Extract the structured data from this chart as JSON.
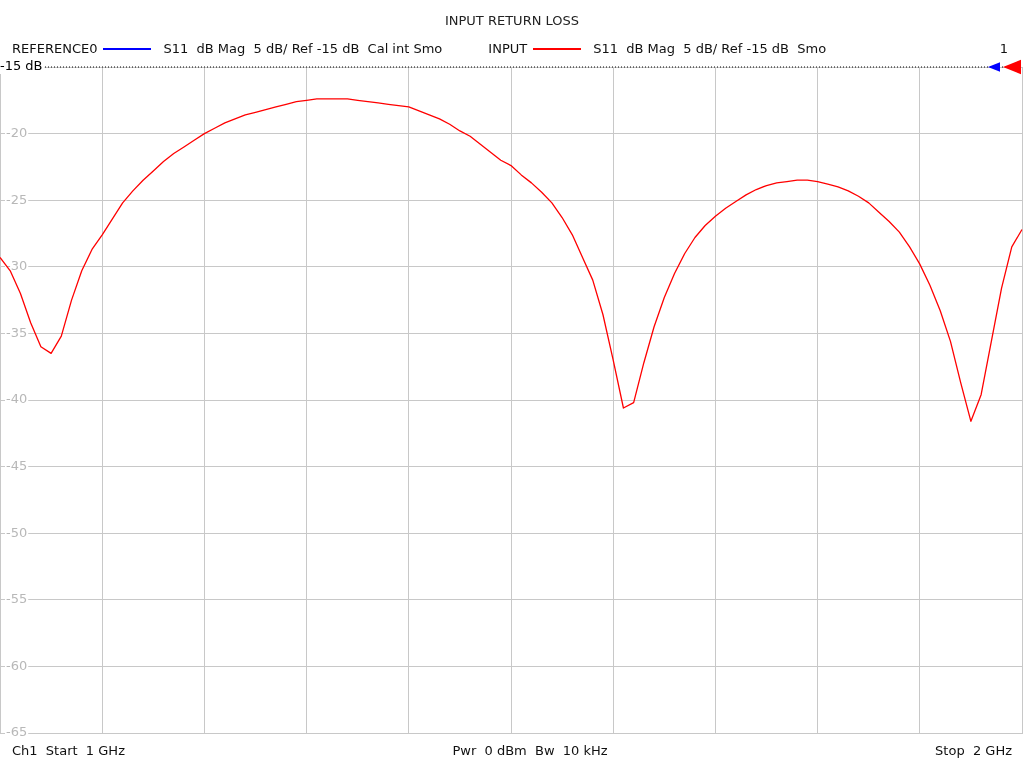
{
  "chart_data": {
    "type": "line",
    "title": "INPUT RETURN LOSS",
    "categories": [
      null,
      null,
      null,
      null,
      null,
      null,
      null,
      null,
      null,
      null,
      null,
      null,
      null,
      null,
      null,
      null,
      null,
      null,
      null,
      null,
      null,
      null,
      null,
      null,
      null,
      null,
      null,
      null,
      null,
      null,
      null,
      null,
      null,
      null,
      null,
      null,
      null,
      null,
      null,
      null,
      null,
      null,
      null,
      null,
      null,
      null,
      null,
      null,
      null,
      null,
      null,
      null,
      null,
      null,
      null,
      null,
      null,
      null,
      null,
      null,
      null,
      null,
      null,
      null,
      null,
      null,
      null,
      null,
      null,
      null,
      null,
      null,
      null,
      null,
      null,
      null,
      null,
      null,
      null,
      null,
      null,
      null,
      null,
      null,
      null,
      null,
      null,
      null,
      null,
      null,
      null,
      null,
      null,
      null,
      null,
      null,
      null,
      null,
      null,
      null,
      null
    ],
    "series": [
      {
        "name": "INPUT",
        "color": "#ff0000",
        "values": [
          -29.3,
          -30.3,
          -32.0,
          -34.2,
          -36.0,
          -36.5,
          -35.2,
          -32.5,
          -30.3,
          -28.7,
          -27.6,
          -26.4,
          -25.2,
          -24.3,
          -23.5,
          -22.8,
          -22.1,
          -21.5,
          -21.0,
          -20.5,
          -20.0,
          -19.6,
          -19.2,
          -18.9,
          -18.6,
          -18.4,
          -18.2,
          -18.0,
          -17.8,
          -17.6,
          -17.5,
          -17.4,
          -17.4,
          -17.4,
          -17.4,
          -17.5,
          -17.6,
          -17.7,
          -17.8,
          -17.9,
          -18.0,
          -18.3,
          -18.6,
          -18.9,
          -19.3,
          -19.8,
          -20.2,
          -20.8,
          -21.4,
          -22.0,
          -22.4,
          -23.1,
          -23.7,
          -24.4,
          -25.2,
          -26.3,
          -27.6,
          -29.3,
          -31.0,
          -33.6,
          -37.0,
          -40.6,
          -40.2,
          -37.2,
          -34.5,
          -32.3,
          -30.5,
          -29.0,
          -27.8,
          -26.9,
          -26.2,
          -25.6,
          -25.1,
          -24.6,
          -24.2,
          -23.9,
          -23.7,
          -23.6,
          -23.5,
          -23.5,
          -23.6,
          -23.8,
          -24.0,
          -24.3,
          -24.7,
          -25.2,
          -25.9,
          -26.6,
          -27.4,
          -28.5,
          -29.8,
          -31.4,
          -33.3,
          -35.6,
          -38.7,
          -41.6,
          -39.6,
          -35.6,
          -31.6,
          -28.5,
          -27.2
        ]
      }
    ],
    "ylim": [
      -65,
      -15
    ],
    "yticks": [
      {
        "value": -15,
        "label": null
      },
      -20,
      -25,
      -30,
      -35,
      -40,
      -45,
      -50,
      -55,
      -60,
      -65
    ],
    "tick_labels": "y",
    "grid": true,
    "legend": "top",
    "marker": "none",
    "ref_lines": [
      {
        "axis": "y",
        "value": -15,
        "label": "-15 dB",
        "line_style": "dotted",
        "color": "#000000"
      }
    ],
    "annotations": [
      "REFERENCE0",
      "S11  dB Mag  5 dB/ Ref -15 dB  Cal int Smo",
      "S11  dB Mag  5 dB/ Ref -15 dB  Smo",
      "1",
      "Ch1  Start  1 GHz",
      "Pwr  0 dBm  Bw  10 kHz",
      "Stop  2 GHz"
    ]
  }
}
